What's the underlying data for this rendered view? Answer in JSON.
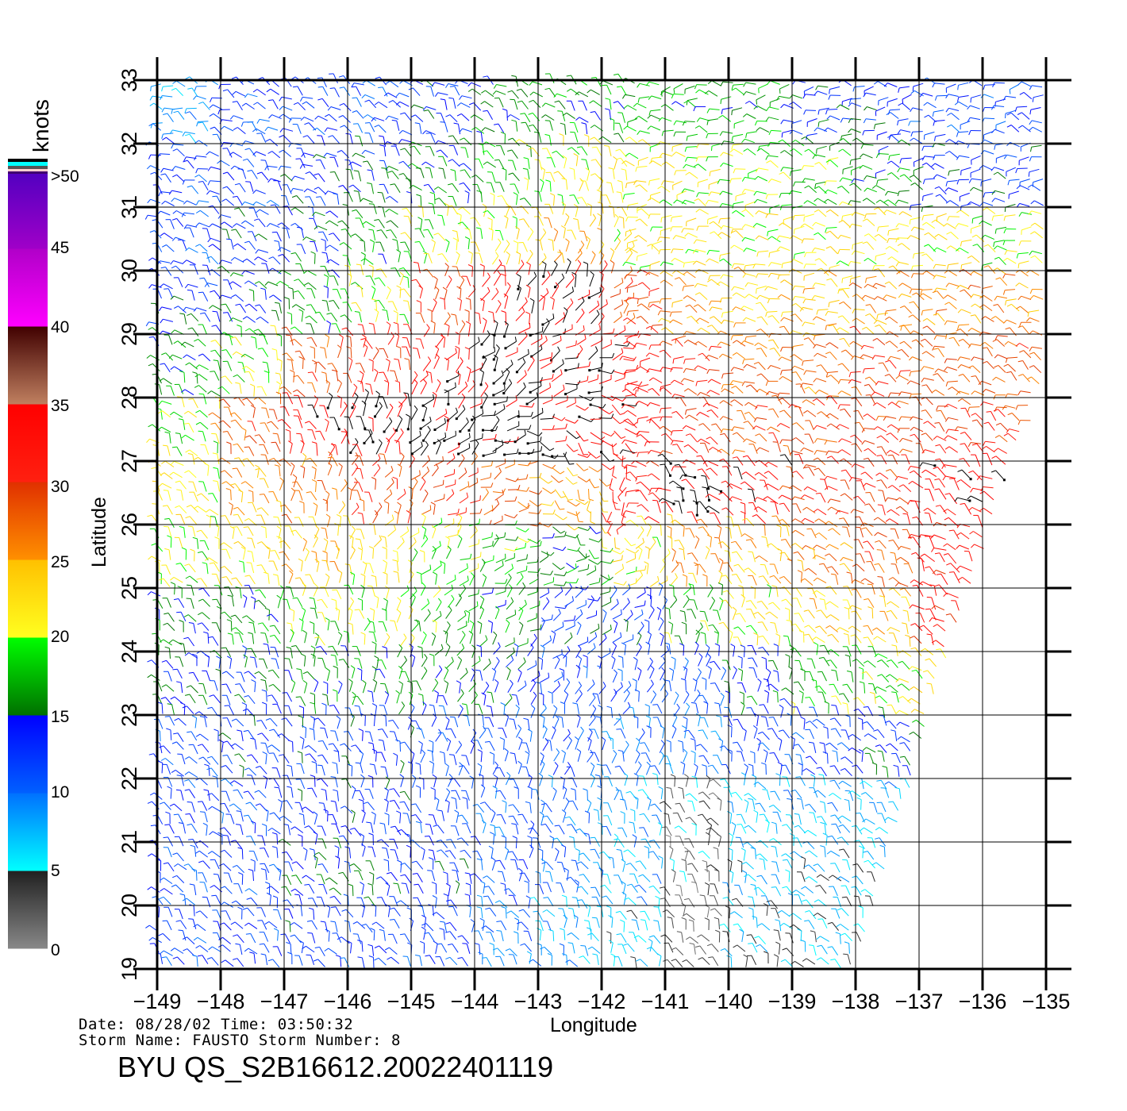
{
  "colorbar": {
    "title": "knots",
    "labels": [
      ">50",
      "45",
      "40",
      "35",
      "30",
      "25",
      "20",
      "15",
      "10",
      "5",
      "0"
    ],
    "segments": [
      {
        "range": [
          0,
          5
        ],
        "colors": [
          "#888888",
          "#202020"
        ]
      },
      {
        "range": [
          5,
          10
        ],
        "colors": [
          "#00ffff",
          "#0070ff"
        ]
      },
      {
        "range": [
          10,
          15
        ],
        "colors": [
          "#0060ff",
          "#0000ff"
        ]
      },
      {
        "range": [
          15,
          20
        ],
        "colors": [
          "#007000",
          "#00ff00"
        ]
      },
      {
        "range": [
          20,
          25
        ],
        "colors": [
          "#ffff20",
          "#ffc000"
        ]
      },
      {
        "range": [
          25,
          30
        ],
        "colors": [
          "#ff9000",
          "#e03000"
        ]
      },
      {
        "range": [
          30,
          35
        ],
        "colors": [
          "#ff2010",
          "#ff0000"
        ]
      },
      {
        "range": [
          35,
          40
        ],
        "colors": [
          "#c08060",
          "#400000"
        ]
      },
      {
        "range": [
          40,
          45
        ],
        "colors": [
          "#ff00ff",
          "#b000c8"
        ]
      },
      {
        "range": [
          45,
          50
        ],
        "colors": [
          "#a000c8",
          "#5000c0"
        ]
      }
    ]
  },
  "info": {
    "date_line": "Date: 08/28/02   Time: 03:50:32",
    "storm_line": "Storm  Name: FAUSTO   Storm  Number: 8",
    "product": "BYU  QS_S2B16612.20022401119"
  },
  "chart_data": {
    "type": "wind-barb-field",
    "xlabel": "Longitude",
    "ylabel": "Latitude",
    "xlim": [
      -149,
      -135
    ],
    "ylim": [
      19,
      33
    ],
    "xticks": [
      "−149",
      "−148",
      "−147",
      "−146",
      "−145",
      "−144",
      "−143",
      "−142",
      "−141",
      "−140",
      "−139",
      "−138",
      "−137",
      "−136",
      "−135"
    ],
    "yticks": [
      "19",
      "20",
      "21",
      "22",
      "23",
      "24",
      "25",
      "26",
      "27",
      "28",
      "29",
      "30",
      "31",
      "32",
      "33"
    ],
    "grid": true,
    "units": "knots",
    "speed_grid_note": "rows from lat 33 down to 19, columns from lon -149 to -135 (1 degree cells)",
    "speed_grid": [
      [
        8,
        12,
        12,
        12,
        13,
        16,
        17,
        17,
        17,
        17,
        14,
        13,
        12,
        12
      ],
      [
        12,
        12,
        13,
        14,
        16,
        18,
        21,
        22,
        21,
        20,
        18,
        16,
        14,
        13
      ],
      [
        12,
        13,
        14,
        17,
        20,
        22,
        24,
        22,
        22,
        22,
        22,
        22,
        22,
        20
      ],
      [
        13,
        15,
        17,
        20,
        30,
        33,
        34,
        29,
        25,
        23,
        24,
        26,
        27,
        26
      ],
      [
        16,
        20,
        28,
        31,
        33,
        36,
        34,
        33,
        30,
        27,
        27,
        29,
        28,
        28
      ],
      [
        20,
        28,
        33,
        36,
        36,
        37,
        34,
        33,
        31,
        28,
        29,
        29,
        30,
        30
      ],
      [
        22,
        25,
        27,
        29,
        29,
        27,
        25,
        32,
        35,
        33,
        30,
        30,
        33,
        33
      ],
      [
        20,
        22,
        24,
        22,
        20,
        18,
        17,
        22,
        25,
        24,
        26,
        28,
        32,
        32
      ],
      [
        16,
        17,
        19,
        20,
        18,
        17,
        13,
        13,
        18,
        21,
        23,
        24,
        32,
        32
      ],
      [
        14,
        14,
        16,
        16,
        16,
        14,
        12,
        12,
        12,
        15,
        18,
        20,
        22,
        22
      ],
      [
        12,
        13,
        13,
        13,
        12,
        12,
        12,
        10,
        10,
        12,
        12,
        14,
        16,
        16
      ],
      [
        12,
        12,
        13,
        13,
        12,
        11,
        10,
        8,
        3,
        7,
        8,
        8,
        8,
        8
      ],
      [
        12,
        12,
        14,
        14,
        13,
        12,
        10,
        8,
        3,
        7,
        7,
        7,
        7,
        7
      ],
      [
        12,
        12,
        13,
        12,
        12,
        10,
        8,
        6,
        3,
        6,
        6,
        6,
        6,
        6
      ]
    ],
    "swath_east_edge": [
      [
        28.3,
        -135.0
      ],
      [
        25,
        -136.2
      ],
      [
        22,
        -137.1
      ],
      [
        19,
        -138.0
      ]
    ],
    "circulation_center": [
      25.8,
      -141.6
    ]
  }
}
